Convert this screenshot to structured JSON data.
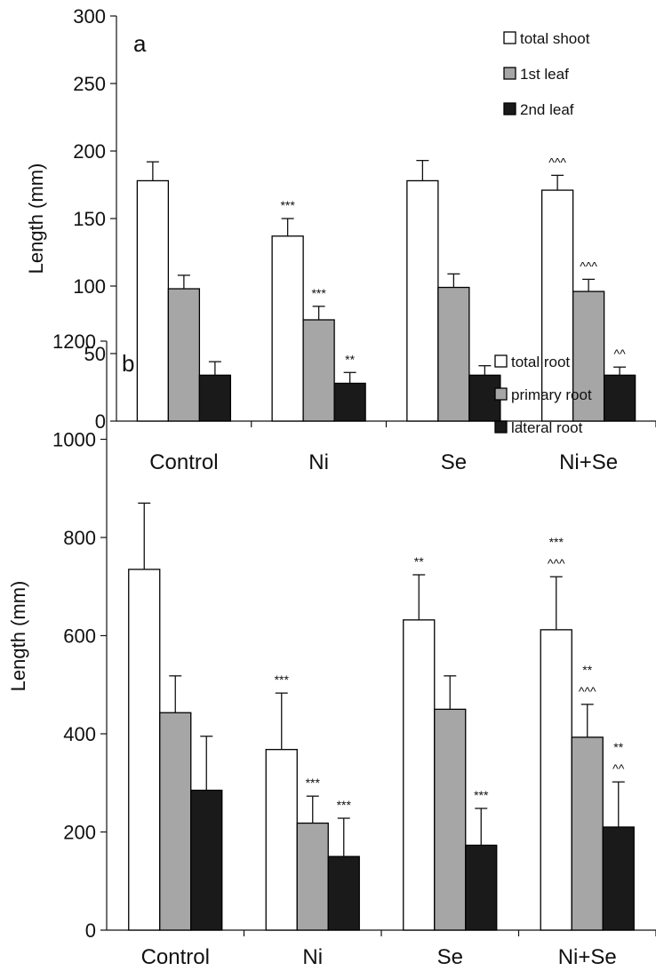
{
  "colors": {
    "background": "#ffffff",
    "axis": "#111111",
    "bar_stroke": "#000000"
  },
  "chart_data": [
    {
      "type": "bar",
      "panel_letter": "a",
      "ylabel": "Length (mm)",
      "xlabel": "",
      "ylim": [
        0,
        300
      ],
      "yticks": [
        0,
        50,
        100,
        150,
        200,
        250,
        300
      ],
      "grid": false,
      "legend_position": "top-right",
      "categories": [
        "Control",
        "Ni",
        "Se",
        "Ni+Se"
      ],
      "series": [
        {
          "name": "total shoot",
          "color": "#ffffff",
          "values": [
            178,
            137,
            178,
            171
          ],
          "errors": [
            14,
            13,
            15,
            11
          ],
          "significance": [
            "",
            "***",
            "",
            "^^^"
          ]
        },
        {
          "name": "1st leaf",
          "color": "#a6a6a6",
          "values": [
            98,
            75,
            99,
            96
          ],
          "errors": [
            10,
            10,
            10,
            9
          ],
          "significance": [
            "",
            "***",
            "",
            "^^^"
          ]
        },
        {
          "name": "2nd leaf",
          "color": "#1a1a1a",
          "values": [
            34,
            28,
            34,
            34
          ],
          "errors": [
            10,
            8,
            7,
            6
          ],
          "significance": [
            "",
            "**",
            "",
            "^^"
          ]
        }
      ]
    },
    {
      "type": "bar",
      "panel_letter": "b",
      "ylabel": "Length (mm)",
      "xlabel": "",
      "ylim": [
        0,
        1200
      ],
      "yticks": [
        0,
        200,
        400,
        600,
        800,
        1000,
        1200
      ],
      "grid": false,
      "legend_position": "top-right",
      "categories": [
        "Control",
        "Ni",
        "Se",
        "Ni+Se"
      ],
      "series": [
        {
          "name": "total root",
          "color": "#ffffff",
          "values": [
            735,
            368,
            632,
            612
          ],
          "errors": [
            135,
            115,
            92,
            108
          ],
          "significance": [
            "",
            "***",
            "**",
            "***\n^^^"
          ]
        },
        {
          "name": "primary root",
          "color": "#a6a6a6",
          "values": [
            443,
            218,
            450,
            393
          ],
          "errors": [
            75,
            55,
            68,
            67
          ],
          "significance": [
            "",
            "***",
            "",
            "**\n^^^"
          ]
        },
        {
          "name": "lateral root",
          "color": "#1a1a1a",
          "values": [
            285,
            150,
            173,
            210
          ],
          "errors": [
            110,
            78,
            75,
            92
          ],
          "significance": [
            "",
            "***",
            "***",
            "**\n^^"
          ]
        }
      ]
    }
  ]
}
